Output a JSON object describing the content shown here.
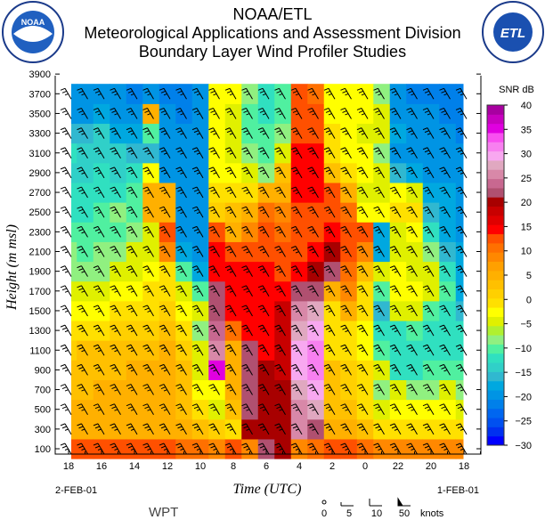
{
  "header": {
    "line1": "NOAA/ETL",
    "line2": "Meteorological Applications and Assessment Division",
    "line3": "Boundary Layer Wind Profiler Studies",
    "left_logo": "NOAA",
    "right_logo": "ETL"
  },
  "footer": {
    "station": "WPT",
    "date_left": "2-FEB-01",
    "date_right": "1-FEB-01",
    "legend_values": [
      "0",
      "5",
      "10",
      "50"
    ],
    "legend_unit": "knots"
  },
  "chart_data": {
    "type": "heatmap",
    "title": "Boundary Layer Wind Profiler Studies",
    "xlabel": "Time (UTC)",
    "ylabel": "Height (m msl)",
    "x_tick_labels": [
      "18",
      "16",
      "14",
      "12",
      "10",
      "8",
      "6",
      "4",
      "2",
      "0",
      "22",
      "20",
      "18"
    ],
    "y_tick_labels": [
      "100",
      "300",
      "500",
      "700",
      "900",
      "1100",
      "1300",
      "1500",
      "1700",
      "1900",
      "2100",
      "2300",
      "2500",
      "2700",
      "2900",
      "3100",
      "3300",
      "3500",
      "3700",
      "3900"
    ],
    "ylim": [
      45,
      3900
    ],
    "colorbar": {
      "label": "SNR dB",
      "range": [
        -30,
        40
      ],
      "tick_labels": [
        "40",
        "35",
        "30",
        "25",
        "20",
        "15",
        "10",
        "5",
        "0",
        "-5",
        "-10",
        "-15",
        "-20",
        "-25",
        "-30"
      ],
      "colors": [
        "#0000ff",
        "#0030f0",
        "#0050f0",
        "#0066f0",
        "#0080ea",
        "#0094e4",
        "#00a8e0",
        "#30b8d0",
        "#30d0c8",
        "#30e0c0",
        "#50f0a0",
        "#90f080",
        "#b0f030",
        "#e0f000",
        "#ffff00",
        "#ffe000",
        "#ffd000",
        "#ffc000",
        "#ffb000",
        "#ffa000",
        "#ff8800",
        "#ff7000",
        "#ff5000",
        "#ff0000",
        "#e00000",
        "#c80000",
        "#a80000",
        "#b05070",
        "#c86890",
        "#d888a8",
        "#e0a8c0",
        "#f8a8f0",
        "#f880f0",
        "#f850f0",
        "#e000e0",
        "#c800c0",
        "#a800a0"
      ]
    },
    "heights_m": [
      100,
      300,
      500,
      700,
      900,
      1100,
      1300,
      1500,
      1700,
      1900,
      2100,
      2300,
      2500,
      2700,
      2900,
      3100,
      3300,
      3500,
      3700
    ],
    "time_hours": [
      18,
      17,
      16,
      15,
      14,
      13,
      12,
      11,
      10,
      9,
      8,
      7,
      6,
      5,
      4,
      3,
      2,
      1,
      0,
      23,
      22,
      21,
      20,
      19,
      18
    ],
    "snr_db": [
      [
        12,
        5,
        5,
        3,
        3,
        2,
        0,
        -2,
        -5,
        -8,
        -8,
        -10,
        -12,
        -12,
        -14,
        -12,
        -15,
        -20,
        -20
      ],
      [
        12,
        5,
        5,
        3,
        3,
        3,
        0,
        -3,
        -5,
        -8,
        -10,
        -10,
        -12,
        -12,
        -14,
        -14,
        -15,
        -20,
        -20
      ],
      [
        12,
        5,
        5,
        5,
        3,
        3,
        0,
        -3,
        -5,
        -8,
        -8,
        -10,
        -10,
        -12,
        -12,
        -14,
        -14,
        -18,
        -20
      ],
      [
        12,
        5,
        5,
        5,
        3,
        3,
        2,
        0,
        -3,
        -5,
        -8,
        -10,
        -8,
        -12,
        -14,
        -14,
        -18,
        -20,
        -20
      ],
      [
        12,
        5,
        5,
        5,
        5,
        3,
        2,
        0,
        -3,
        -5,
        -5,
        -8,
        -10,
        -10,
        -12,
        -15,
        -18,
        -20,
        -22
      ],
      [
        12,
        5,
        5,
        5,
        5,
        3,
        2,
        0,
        0,
        -3,
        -5,
        -5,
        5,
        5,
        -2,
        -15,
        -10,
        5,
        -20
      ],
      [
        12,
        5,
        5,
        5,
        5,
        5,
        3,
        2,
        0,
        0,
        8,
        12,
        5,
        5,
        -20,
        -20,
        -20,
        -20,
        -22
      ],
      [
        10,
        5,
        3,
        3,
        3,
        2,
        0,
        -3,
        -5,
        -10,
        -18,
        -20,
        -20,
        -20,
        -20,
        -20,
        -20,
        -22,
        -22
      ],
      [
        10,
        3,
        0,
        -3,
        -5,
        -5,
        -8,
        -5,
        -10,
        -18,
        -20,
        -20,
        -20,
        -20,
        -20,
        -20,
        -20,
        -20,
        -20
      ],
      [
        8,
        2,
        -5,
        -3,
        35,
        25,
        24,
        22,
        22,
        14,
        14,
        12,
        2,
        0,
        -3,
        -3,
        -2,
        -3,
        -3
      ],
      [
        12,
        0,
        3,
        5,
        5,
        5,
        10,
        14,
        14,
        14,
        12,
        5,
        3,
        0,
        -3,
        -5,
        -5,
        -5,
        -3
      ],
      [
        8,
        20,
        22,
        22,
        22,
        22,
        15,
        15,
        14,
        14,
        12,
        8,
        5,
        0,
        -5,
        -8,
        -10,
        -10,
        -8
      ],
      [
        22,
        20,
        20,
        20,
        20,
        15,
        15,
        15,
        15,
        14,
        13,
        12,
        10,
        5,
        -8,
        -10,
        -10,
        -12,
        -12
      ],
      [
        20,
        20,
        20,
        20,
        18,
        18,
        18,
        18,
        14,
        13,
        12,
        10,
        8,
        5,
        3,
        -5,
        -8,
        -10,
        -10
      ],
      [
        8,
        25,
        25,
        28,
        30,
        30,
        28,
        25,
        22,
        14,
        13,
        13,
        13,
        14,
        15,
        15,
        13,
        12,
        12
      ],
      [
        10,
        22,
        28,
        30,
        32,
        32,
        30,
        28,
        22,
        20,
        14,
        13,
        13,
        14,
        15,
        14,
        12,
        12,
        10
      ],
      [
        12,
        5,
        3,
        3,
        3,
        0,
        0,
        0,
        5,
        22,
        20,
        14,
        13,
        12,
        3,
        0,
        0,
        -2,
        -3
      ],
      [
        12,
        5,
        3,
        2,
        2,
        0,
        0,
        5,
        8,
        10,
        12,
        12,
        10,
        5,
        0,
        -3,
        -3,
        -3,
        -3
      ],
      [
        10,
        3,
        0,
        0,
        0,
        -3,
        -3,
        0,
        0,
        3,
        8,
        12,
        -3,
        -5,
        -3,
        -3,
        -5,
        -3,
        -3
      ],
      [
        8,
        0,
        -5,
        -8,
        -5,
        -10,
        -12,
        -15,
        -10,
        -5,
        -18,
        -18,
        -3,
        -5,
        -5,
        -8,
        -5,
        -5,
        -8
      ],
      [
        8,
        0,
        -3,
        -5,
        -12,
        -12,
        -12,
        -5,
        -3,
        -3,
        -5,
        -5,
        0,
        -3,
        -15,
        -20,
        -18,
        -20,
        -20
      ],
      [
        8,
        0,
        -3,
        -8,
        -12,
        -12,
        -10,
        -5,
        -3,
        -5,
        -5,
        -3,
        0,
        -5,
        -18,
        -20,
        -20,
        -20,
        -22
      ],
      [
        8,
        0,
        -3,
        -8,
        -10,
        -12,
        -12,
        -10,
        -5,
        -5,
        -8,
        -12,
        -15,
        -18,
        -20,
        -20,
        -20,
        -20,
        -22
      ],
      [
        8,
        0,
        -3,
        -5,
        -10,
        -12,
        -12,
        -12,
        -10,
        -12,
        -15,
        -18,
        -18,
        -18,
        -20,
        -20,
        -20,
        -22,
        -22
      ],
      [
        8,
        0,
        -5,
        -8,
        -10,
        -12,
        -12,
        -15,
        -18,
        -18,
        -18,
        -20,
        -20,
        -20,
        -20,
        -20,
        -22,
        -22,
        -22
      ]
    ]
  }
}
